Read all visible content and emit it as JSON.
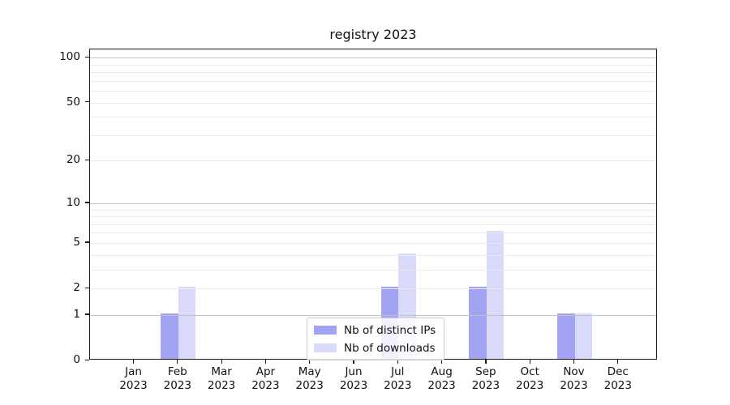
{
  "chart_data": {
    "type": "bar",
    "title": "registry 2023",
    "x_tick_months": [
      "Jan",
      "Feb",
      "Mar",
      "Apr",
      "May",
      "Jun",
      "Jul",
      "Aug",
      "Sep",
      "Oct",
      "Nov",
      "Dec"
    ],
    "x_tick_year": "2023",
    "series": [
      {
        "name": "Nb of distinct IPs",
        "color": "#a3a3f3",
        "values": [
          0,
          1,
          0,
          0,
          0,
          0,
          2,
          0,
          2,
          0,
          1,
          0
        ]
      },
      {
        "name": "Nb of downloads",
        "color": "#d9d9f9",
        "values": [
          0,
          2,
          0,
          0,
          0,
          0,
          4,
          0,
          6,
          0,
          1,
          0
        ]
      }
    ],
    "y_scale": "log1p",
    "ylim": [
      0,
      113.5
    ],
    "y_ticks": [
      0,
      1,
      2,
      5,
      10,
      20,
      50,
      100
    ],
    "major_gridlines": [
      1,
      10,
      100
    ],
    "minor_gridlines": [
      2,
      3,
      4,
      5,
      6,
      7,
      8,
      9,
      20,
      30,
      40,
      50,
      60,
      70,
      80,
      90
    ],
    "grid": true,
    "legend_position": "lower center"
  },
  "colors": {
    "major_grid": "#c3c3c3",
    "minor_grid": "#ececec",
    "spine": "#1a1a1a",
    "background": "#ffffff"
  }
}
